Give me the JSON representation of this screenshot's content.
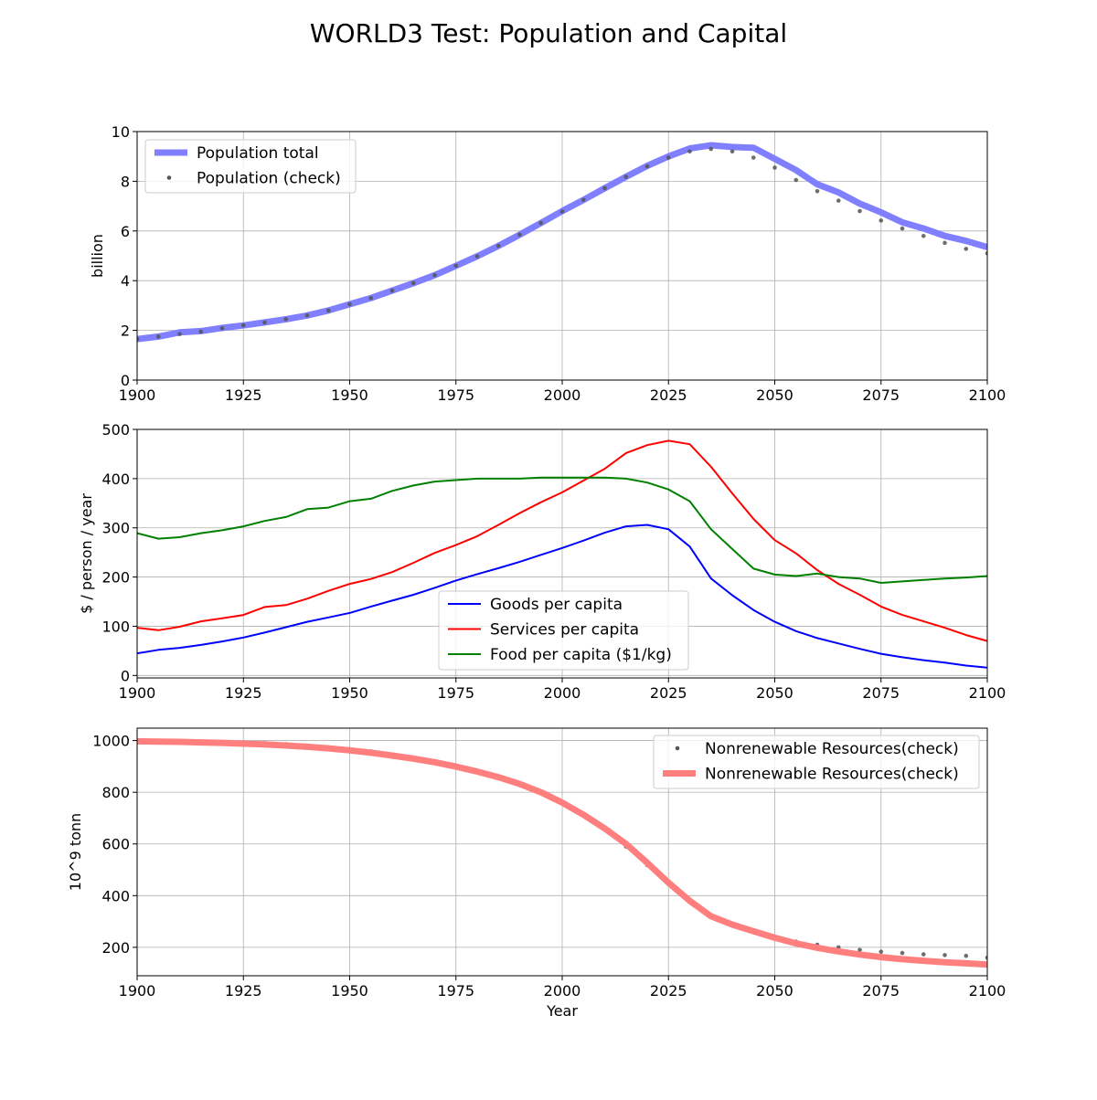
{
  "title": "WORLD3 Test: Population and Capital",
  "chart_data": [
    {
      "type": "line",
      "ylabel": "billion",
      "xlabel": "",
      "xlim": [
        1900,
        2100
      ],
      "ylim": [
        0,
        10
      ],
      "xticks": [
        1900,
        1925,
        1950,
        1975,
        2000,
        2025,
        2050,
        2075,
        2100
      ],
      "yticks": [
        0,
        2,
        4,
        6,
        8,
        10
      ],
      "grid": true,
      "legend_position": "upper-left",
      "x": [
        1900,
        1905,
        1910,
        1915,
        1920,
        1925,
        1930,
        1935,
        1940,
        1945,
        1950,
        1955,
        1960,
        1965,
        1970,
        1975,
        1980,
        1985,
        1990,
        1995,
        2000,
        2005,
        2010,
        2015,
        2020,
        2025,
        2030,
        2035,
        2040,
        2045,
        2050,
        2055,
        2060,
        2065,
        2070,
        2075,
        2080,
        2085,
        2090,
        2095,
        2100
      ],
      "series": [
        {
          "name": "Population total",
          "style": "thick",
          "color": "#7f7fff",
          "values": [
            1.65,
            1.75,
            1.92,
            1.97,
            2.1,
            2.2,
            2.32,
            2.45,
            2.6,
            2.8,
            3.05,
            3.3,
            3.6,
            3.9,
            4.22,
            4.6,
            4.98,
            5.4,
            5.85,
            6.32,
            6.8,
            7.25,
            7.72,
            8.18,
            8.62,
            9.0,
            9.32,
            9.45,
            9.38,
            9.35,
            8.9,
            8.45,
            7.88,
            7.55,
            7.1,
            6.75,
            6.35,
            6.1,
            5.8,
            5.6,
            5.35
          ]
        },
        {
          "name": "Population (check)",
          "style": "dots",
          "color": "#555555",
          "values": [
            1.65,
            1.75,
            1.85,
            1.95,
            2.08,
            2.2,
            2.32,
            2.45,
            2.6,
            2.8,
            3.05,
            3.3,
            3.6,
            3.9,
            4.22,
            4.6,
            4.98,
            5.4,
            5.85,
            6.32,
            6.78,
            7.25,
            7.72,
            8.18,
            8.6,
            8.95,
            9.2,
            9.3,
            9.2,
            8.95,
            8.55,
            8.05,
            7.6,
            7.22,
            6.8,
            6.42,
            6.1,
            5.8,
            5.52,
            5.28,
            5.1
          ]
        }
      ]
    },
    {
      "type": "line",
      "ylabel": "$ / person / year",
      "xlabel": "",
      "xlim": [
        1900,
        2100
      ],
      "ylim": [
        -5,
        500
      ],
      "xticks": [
        1900,
        1925,
        1950,
        1975,
        2000,
        2025,
        2050,
        2075,
        2100
      ],
      "yticks": [
        0,
        100,
        200,
        300,
        400,
        500
      ],
      "grid": true,
      "legend_position": "lower-center",
      "x": [
        1900,
        1905,
        1910,
        1915,
        1920,
        1925,
        1930,
        1935,
        1940,
        1945,
        1950,
        1955,
        1960,
        1965,
        1970,
        1975,
        1980,
        1985,
        1990,
        1995,
        2000,
        2005,
        2010,
        2015,
        2020,
        2025,
        2030,
        2035,
        2040,
        2045,
        2050,
        2055,
        2060,
        2065,
        2070,
        2075,
        2080,
        2085,
        2090,
        2095,
        2100
      ],
      "series": [
        {
          "name": "Goods per capita",
          "color": "#0000ff",
          "values": [
            45,
            52,
            56,
            62,
            69,
            77,
            87,
            98,
            109,
            118,
            127,
            140,
            152,
            164,
            178,
            193,
            206,
            218,
            231,
            245,
            259,
            274,
            290,
            303,
            306,
            297,
            262,
            197,
            163,
            133,
            109,
            90,
            76,
            65,
            54,
            44,
            37,
            31,
            26,
            20,
            16
          ]
        },
        {
          "name": "Services per capita",
          "color": "#ff0000",
          "values": [
            97,
            92,
            99,
            110,
            116,
            123,
            139,
            143,
            156,
            172,
            186,
            196,
            210,
            229,
            249,
            265,
            283,
            306,
            330,
            352,
            372,
            396,
            420,
            452,
            468,
            477,
            470,
            424,
            370,
            318,
            275,
            248,
            214,
            186,
            164,
            140,
            123,
            110,
            97,
            82,
            70
          ]
        },
        {
          "name": "Food per capita ($1/kg)",
          "color": "#008000",
          "values": [
            289,
            278,
            281,
            289,
            295,
            303,
            314,
            322,
            338,
            341,
            354,
            359,
            375,
            386,
            394,
            397,
            400,
            400,
            400,
            402,
            402,
            402,
            402,
            400,
            392,
            378,
            354,
            297,
            257,
            217,
            205,
            202,
            207,
            200,
            197,
            188,
            191,
            194,
            197,
            199,
            202
          ]
        }
      ]
    },
    {
      "type": "line",
      "ylabel": "10^9 tonn",
      "xlabel": "Year",
      "xlim": [
        1900,
        2100
      ],
      "ylim": [
        90,
        1048
      ],
      "xticks": [
        1900,
        1925,
        1950,
        1975,
        2000,
        2025,
        2050,
        2075,
        2100
      ],
      "yticks": [
        200,
        400,
        600,
        800,
        1000
      ],
      "grid": true,
      "legend_position": "upper-right",
      "x": [
        1900,
        1905,
        1910,
        1915,
        1920,
        1925,
        1930,
        1935,
        1940,
        1945,
        1950,
        1955,
        1960,
        1965,
        1970,
        1975,
        1980,
        1985,
        1990,
        1995,
        2000,
        2005,
        2010,
        2015,
        2020,
        2025,
        2030,
        2035,
        2040,
        2045,
        2050,
        2055,
        2060,
        2065,
        2070,
        2075,
        2080,
        2085,
        2090,
        2095,
        2100
      ],
      "series": [
        {
          "name": "Nonrenewable Resources(check)",
          "style": "dots",
          "color": "#555555",
          "values": [
            1000,
            1000,
            998,
            997,
            995,
            993,
            990,
            986,
            980,
            974,
            966,
            958,
            946,
            934,
            920,
            902,
            884,
            862,
            836,
            803,
            762,
            714,
            656,
            590,
            518,
            448,
            375,
            320,
            288,
            262,
            240,
            222,
            210,
            200,
            190,
            183,
            178,
            173,
            170,
            167,
            160
          ]
        },
        {
          "name": "Nonrenewable Resources(check)",
          "style": "thick",
          "color": "#ff7f7f",
          "values": [
            997,
            996,
            995,
            993,
            991,
            988,
            985,
            981,
            976,
            970,
            962,
            953,
            942,
            930,
            916,
            899,
            880,
            858,
            832,
            800,
            760,
            713,
            660,
            600,
            527,
            450,
            380,
            320,
            288,
            262,
            237,
            215,
            198,
            184,
            172,
            162,
            154,
            148,
            142,
            138,
            133
          ]
        }
      ]
    }
  ]
}
